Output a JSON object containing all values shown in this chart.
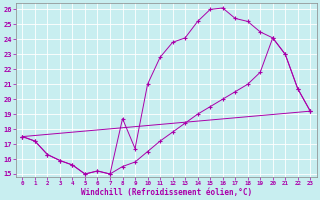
{
  "xlabel": "Windchill (Refroidissement éolien,°C)",
  "background_color": "#c8eef0",
  "line_color": "#aa00aa",
  "xlim": [
    -0.5,
    23.5
  ],
  "ylim": [
    14.8,
    26.4
  ],
  "yticks": [
    15,
    16,
    17,
    18,
    19,
    20,
    21,
    22,
    23,
    24,
    25,
    26
  ],
  "xticks": [
    0,
    1,
    2,
    3,
    4,
    5,
    6,
    7,
    8,
    9,
    10,
    11,
    12,
    13,
    14,
    15,
    16,
    17,
    18,
    19,
    20,
    21,
    22,
    23
  ],
  "line1_x": [
    0,
    1,
    2,
    3,
    4,
    5,
    6,
    7,
    8,
    9,
    10,
    11,
    12,
    13,
    14,
    15,
    16,
    17,
    18,
    19,
    20,
    21,
    22,
    23
  ],
  "line1_y": [
    17.5,
    17.2,
    16.3,
    15.9,
    15.6,
    15.0,
    15.2,
    15.0,
    18.7,
    16.7,
    21.0,
    22.8,
    23.8,
    24.1,
    25.2,
    26.0,
    26.1,
    25.4,
    25.2,
    24.5,
    24.1,
    23.0,
    20.7,
    19.2
  ],
  "line2_x": [
    0,
    1,
    2,
    3,
    4,
    5,
    6,
    7,
    8,
    9,
    10,
    11,
    12,
    13,
    14,
    15,
    16,
    17,
    18,
    19,
    20,
    21,
    22,
    23
  ],
  "line2_y": [
    17.5,
    17.2,
    16.3,
    15.9,
    15.6,
    15.0,
    15.2,
    15.0,
    15.5,
    15.8,
    16.5,
    17.2,
    17.8,
    18.4,
    19.0,
    19.5,
    20.0,
    20.5,
    21.0,
    21.8,
    24.1,
    23.0,
    20.7,
    19.2
  ],
  "line3_x": [
    0,
    23
  ],
  "line3_y": [
    17.5,
    19.2
  ]
}
